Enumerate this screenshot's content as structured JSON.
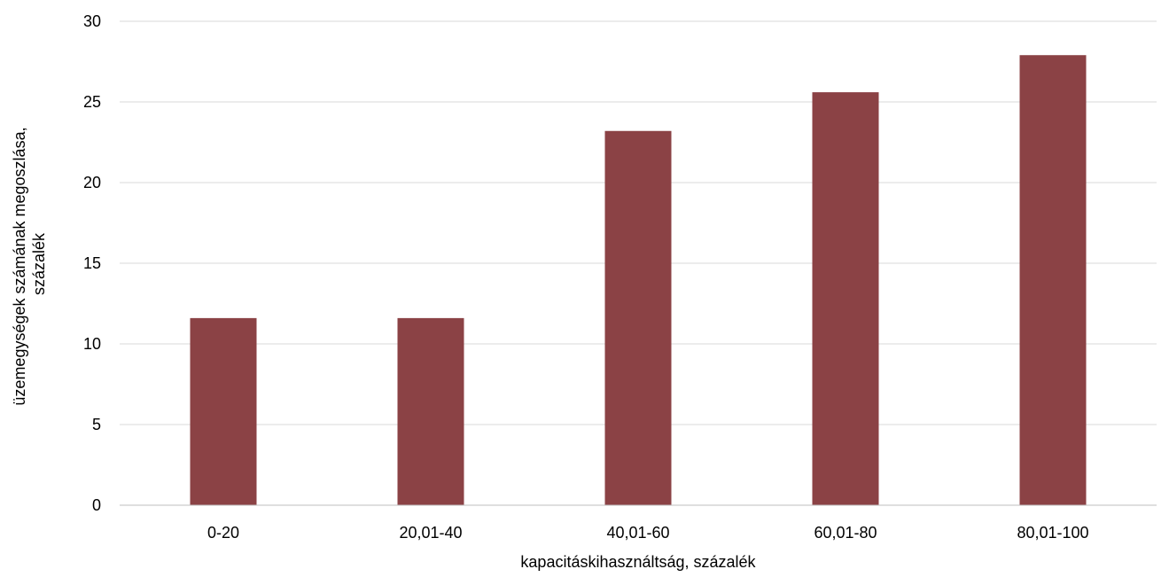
{
  "chart_data": {
    "type": "bar",
    "categories": [
      "0-20",
      "20,01-40",
      "40,01-60",
      "60,01-80",
      "80,01-100"
    ],
    "values": [
      11.6,
      11.6,
      23.2,
      25.6,
      27.9
    ],
    "xlabel": "kapacitáskihasználtság, százalék",
    "ylabel_lines": [
      "üzemegységek számának megoszlása,",
      "százalék"
    ],
    "ylim": [
      0,
      30
    ],
    "yticks": [
      "0",
      "5",
      "10",
      "15",
      "20",
      "25",
      "30"
    ],
    "grid": true,
    "legend": "none",
    "colors": {
      "bar": "#8B4245",
      "grid": "#D9D9D9",
      "axis": "#BFBFBF",
      "text": "#000000"
    }
  }
}
